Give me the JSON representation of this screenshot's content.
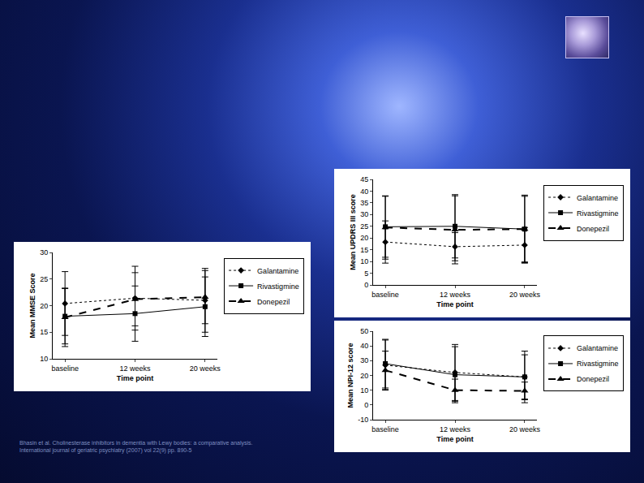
{
  "chart_data": [
    {
      "type": "line",
      "y_label": "Mean MMSE Score",
      "x_label": "Time point",
      "categories": [
        "baseline",
        "12 weeks",
        "20 weeks"
      ],
      "ylim": [
        10,
        30
      ],
      "yticks": [
        10,
        15,
        20,
        25,
        30
      ],
      "grid": false,
      "legend": "right",
      "series": [
        {
          "name": "Galantamine",
          "color": "#000000",
          "marker": "diamond",
          "line_style": "dot",
          "values": [
            20.4,
            21.4,
            21.0
          ],
          "error": [
            6.0,
            6.0,
            6.0
          ]
        },
        {
          "name": "Rivastigmine",
          "color": "#000000",
          "marker": "square",
          "line_style": "solid",
          "values": [
            18.0,
            18.5,
            19.8
          ],
          "error": [
            5.2,
            5.2,
            5.6
          ]
        },
        {
          "name": "Donepezil",
          "color": "#000000",
          "marker": "triangle",
          "line_style": "dash",
          "values": [
            17.8,
            21.2,
            21.6
          ],
          "error": [
            5.5,
            5.0,
            5.0
          ]
        }
      ]
    },
    {
      "type": "line",
      "y_label": "Mean UPDRS III score",
      "x_label": "Time point",
      "categories": [
        "baseline",
        "12 weeks",
        "20 weeks"
      ],
      "ylim": [
        0,
        45
      ],
      "yticks": [
        0,
        5,
        10,
        15,
        20,
        25,
        30,
        35,
        40,
        45
      ],
      "grid": false,
      "legend": "right",
      "series": [
        {
          "name": "Galantamine",
          "color": "#000000",
          "marker": "diamond",
          "line_style": "dot",
          "values": [
            18.3,
            16.3,
            17.0
          ],
          "error": [
            9.0,
            6.0,
            7.5
          ]
        },
        {
          "name": "Rivastigmine",
          "color": "#000000",
          "marker": "square",
          "line_style": "solid",
          "values": [
            24.8,
            25.0,
            23.8
          ],
          "error": [
            13.0,
            13.5,
            14.5
          ]
        },
        {
          "name": "Donepezil",
          "color": "#000000",
          "marker": "triangle",
          "line_style": "dash",
          "values": [
            24.5,
            23.5,
            23.8
          ],
          "error": [
            13.5,
            14.5,
            14.0
          ]
        }
      ]
    },
    {
      "type": "line",
      "y_label": "Mean NPI-12 score",
      "x_label": "Time point",
      "categories": [
        "baseline",
        "12 weeks",
        "20 weeks"
      ],
      "ylim": [
        -10,
        50
      ],
      "yticks": [
        -10,
        0,
        10,
        20,
        30,
        40,
        50
      ],
      "grid": false,
      "legend": "right",
      "series": [
        {
          "name": "Galantamine",
          "color": "#000000",
          "marker": "diamond",
          "line_style": "dot",
          "values": [
            27.0,
            22.0,
            19.0
          ],
          "error": [
            17.0,
            19.0,
            17.5
          ]
        },
        {
          "name": "Rivastigmine",
          "color": "#000000",
          "marker": "square",
          "line_style": "solid",
          "values": [
            28.0,
            20.5,
            19.0
          ],
          "error": [
            16.5,
            19.0,
            15.0
          ]
        },
        {
          "name": "Donepezil",
          "color": "#000000",
          "marker": "triangle",
          "line_style": "dash",
          "values": [
            23.5,
            10.0,
            9.5
          ],
          "error": [
            13.0,
            7.5,
            6.0
          ]
        }
      ]
    }
  ],
  "citation": [
    "Bhasin et al. Cholinesterase inhibitors in dementia with Lewy bodies: a comparative analysis.",
    "International journal of geriatric psychiatry (2007) vol 22(9) pp. 890-5"
  ]
}
